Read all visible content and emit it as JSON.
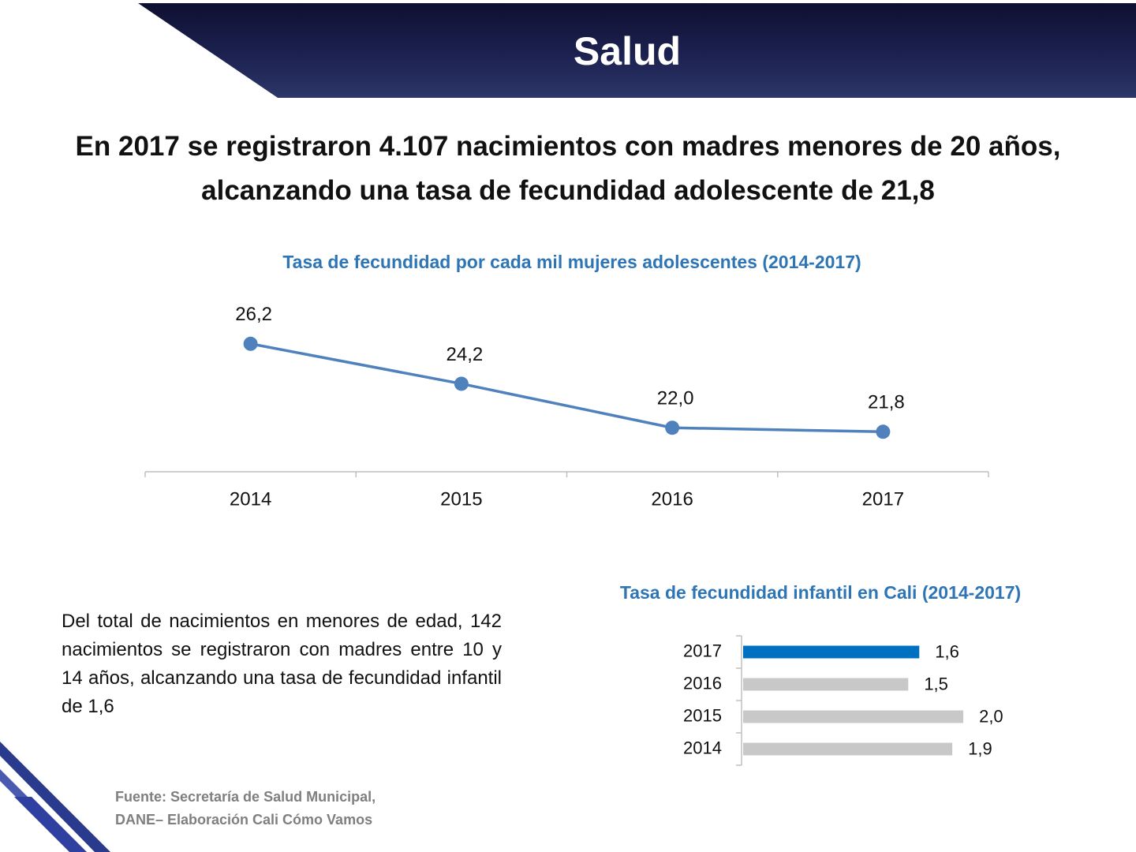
{
  "header": {
    "title": "Salud"
  },
  "headline": "En 2017 se registraron 4.107 nacimientos con madres menores de 20 años, alcanzando una tasa de fecundidad adolescente de 21,8",
  "paragraph": "Del total de nacimientos en menores de edad, 142 nacimientos se registraron con madres entre 10 y 14 años, alcanzando una tasa de fecundidad infantil de 1,6",
  "source": [
    "Fuente: Secretaría de Salud Municipal,",
    "DANE– Elaboración Cali Cómo Vamos"
  ],
  "chart_data": [
    {
      "type": "line",
      "title": "Tasa de fecundidad por cada mil mujeres adolescentes (2014-2017)",
      "categories": [
        "2014",
        "2015",
        "2016",
        "2017"
      ],
      "values": [
        26.2,
        24.2,
        22.0,
        21.8
      ],
      "value_labels": [
        "26,2",
        "24,2",
        "22,0",
        "21,8"
      ],
      "color": "#4f81bd",
      "ylim": [
        19.8,
        28.4
      ]
    },
    {
      "type": "bar",
      "orientation": "horizontal",
      "title": "Tasa de fecundidad infantil en Cali  (2014-2017)",
      "categories": [
        "2017",
        "2016",
        "2015",
        "2014"
      ],
      "values": [
        1.6,
        1.5,
        2.0,
        1.9
      ],
      "value_labels": [
        "1,6",
        "1,5",
        "2,0",
        "1,9"
      ],
      "colors": [
        "#0070c0",
        "#c8c8c8",
        "#c8c8c8",
        "#c8c8c8"
      ],
      "xlim": [
        0,
        2.2
      ]
    }
  ]
}
